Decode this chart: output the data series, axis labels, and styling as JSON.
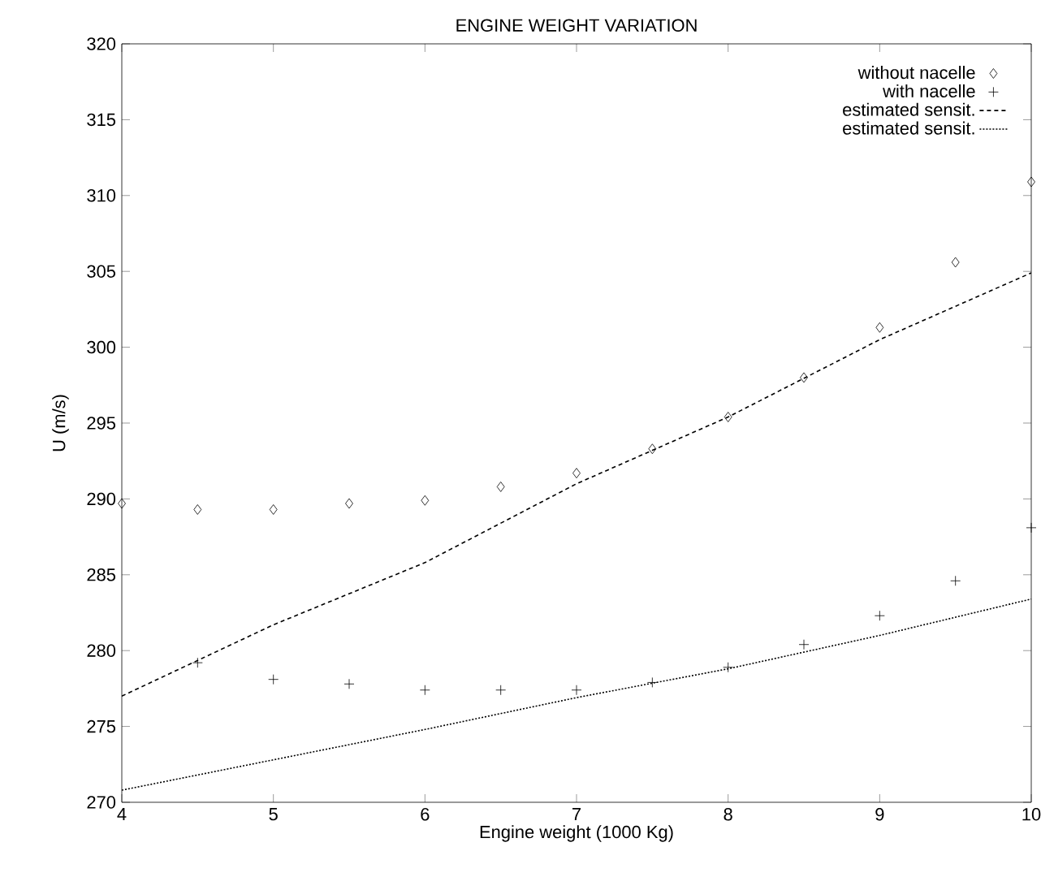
{
  "chart_data": {
    "type": "scatter",
    "title": "ENGINE WEIGHT VARIATION",
    "xlabel": "Engine weight (1000 Kg)",
    "ylabel": "U (m/s)",
    "xlim": [
      4,
      10
    ],
    "ylim": [
      270,
      320
    ],
    "xticks": [
      4,
      5,
      6,
      7,
      8,
      9,
      10
    ],
    "yticks": [
      270,
      275,
      280,
      285,
      290,
      295,
      300,
      305,
      310,
      315,
      320
    ],
    "legend": "top right",
    "grid": false,
    "series": [
      {
        "name": "without nacelle",
        "marker": "diamond",
        "color": "#000000",
        "x": [
          4,
          4.5,
          5,
          5.5,
          6,
          6.5,
          7,
          7.5,
          8,
          8.5,
          9,
          9.5,
          10
        ],
        "values": [
          289.7,
          289.3,
          289.3,
          289.7,
          289.9,
          290.8,
          291.7,
          293.3,
          295.4,
          298.0,
          301.3,
          305.6,
          310.9
        ]
      },
      {
        "name": "with nacelle",
        "marker": "cross",
        "color": "#000000",
        "x": [
          4.5,
          5,
          5.5,
          6,
          6.5,
          7,
          7.5,
          8,
          8.5,
          9,
          9.5,
          10
        ],
        "values": [
          279.2,
          278.1,
          277.8,
          277.4,
          277.4,
          277.4,
          277.9,
          278.9,
          280.4,
          282.3,
          284.6,
          288.1
        ]
      },
      {
        "name": "estimated sensit.",
        "type": "line",
        "line_style": "dashed",
        "color": "#000000",
        "x": [
          4,
          5,
          6,
          7,
          8,
          9,
          10
        ],
        "values": [
          277.0,
          281.7,
          285.8,
          291.0,
          295.4,
          300.5,
          304.9
        ]
      },
      {
        "name": "estimated sensit.",
        "type": "line",
        "line_style": "dotted",
        "color": "#000000",
        "x": [
          4,
          5,
          6,
          7,
          8,
          9,
          10
        ],
        "values": [
          270.8,
          272.8,
          274.8,
          276.9,
          278.8,
          281.0,
          283.4
        ]
      }
    ]
  }
}
